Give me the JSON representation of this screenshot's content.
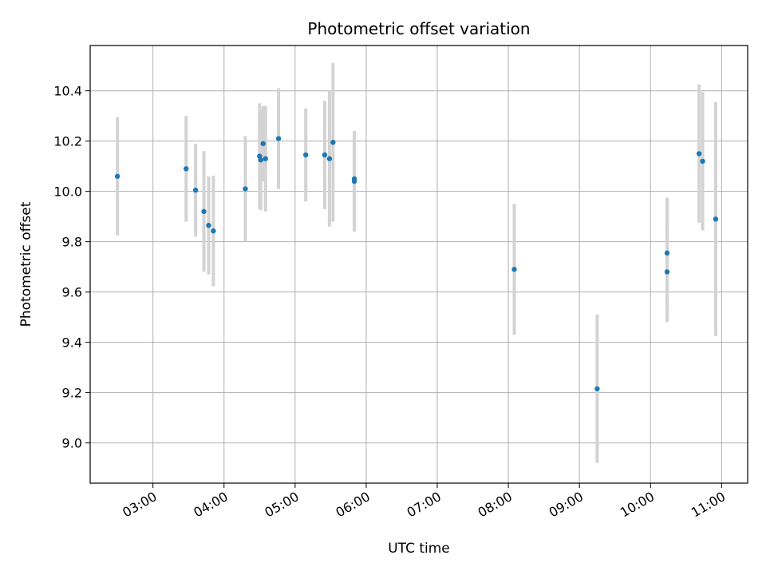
{
  "chart_data": {
    "type": "scatter",
    "title": "Photometric offset variation",
    "xlabel": "UTC time",
    "ylabel": "Photometric offset",
    "xlim": [
      "02:07",
      "11:22"
    ],
    "ylim": [
      8.84,
      10.58
    ],
    "x_ticks": [
      "03:00",
      "04:00",
      "05:00",
      "06:00",
      "07:00",
      "08:00",
      "09:00",
      "10:00",
      "11:00"
    ],
    "y_ticks": [
      9.0,
      9.2,
      9.4,
      9.6,
      9.8,
      10.0,
      10.2,
      10.4
    ],
    "y_tick_labels": [
      "9.0",
      "9.2",
      "9.4",
      "9.6",
      "9.8",
      "10.0",
      "10.2",
      "10.4"
    ],
    "grid": true,
    "marker_color": "#1f77b4",
    "errorbar_color": "#d3d3d3",
    "points": [
      {
        "time": "02:30",
        "y": 10.06,
        "err": 0.235
      },
      {
        "time": "03:28",
        "y": 10.09,
        "err": 0.21
      },
      {
        "time": "03:36",
        "y": 10.005,
        "err": 0.185
      },
      {
        "time": "03:43",
        "y": 9.92,
        "err": 0.24
      },
      {
        "time": "03:47",
        "y": 9.865,
        "err": 0.195
      },
      {
        "time": "03:51",
        "y": 9.843,
        "err": 0.22
      },
      {
        "time": "04:18",
        "y": 10.01,
        "err": 0.21
      },
      {
        "time": "04:30",
        "y": 10.14,
        "err": 0.21
      },
      {
        "time": "04:31",
        "y": 10.125,
        "err": 0.2
      },
      {
        "time": "04:33",
        "y": 10.19,
        "err": 0.15
      },
      {
        "time": "04:35",
        "y": 10.13,
        "err": 0.21
      },
      {
        "time": "04:46",
        "y": 10.21,
        "err": 0.2
      },
      {
        "time": "05:09",
        "y": 10.145,
        "err": 0.185
      },
      {
        "time": "05:25",
        "y": 10.145,
        "err": 0.215
      },
      {
        "time": "05:29",
        "y": 10.13,
        "err": 0.27
      },
      {
        "time": "05:32",
        "y": 10.195,
        "err": 0.315
      },
      {
        "time": "05:50",
        "y": 10.05,
        "err": 0.19
      },
      {
        "time": "05:50",
        "y": 10.04,
        "err": 0.2
      },
      {
        "time": "08:05",
        "y": 9.69,
        "err": 0.26
      },
      {
        "time": "09:15",
        "y": 9.215,
        "err": 0.295
      },
      {
        "time": "10:14",
        "y": 9.755,
        "err": 0.22
      },
      {
        "time": "10:14",
        "y": 9.68,
        "err": 0.2
      },
      {
        "time": "10:41",
        "y": 10.15,
        "err": 0.275
      },
      {
        "time": "10:44",
        "y": 10.12,
        "err": 0.275
      },
      {
        "time": "10:55",
        "y": 9.89,
        "err": 0.465
      }
    ]
  }
}
